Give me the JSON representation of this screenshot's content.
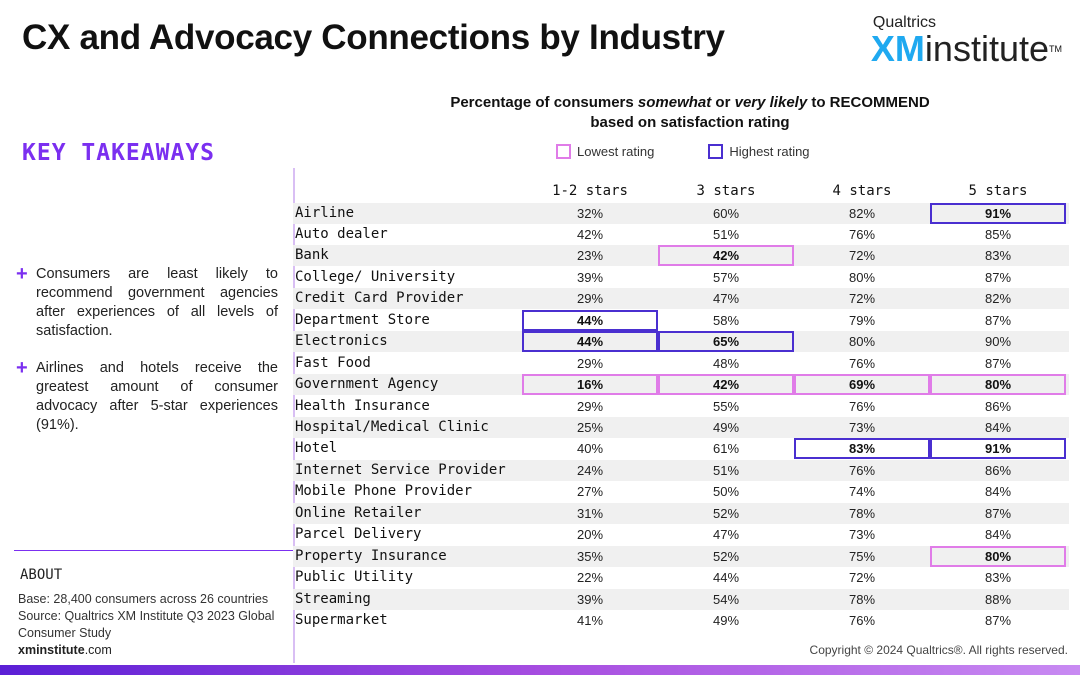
{
  "header": {
    "title": "CX and Advocacy Connections by Industry",
    "logo_top": "Qualtrics",
    "logo_xm": "XM",
    "logo_institute": "institute",
    "logo_tm": "TM"
  },
  "sidebar": {
    "key_takeaways_title": "KEY TAKEAWAYS",
    "takeaways": [
      "Consumers are least likely to recommend government agencies after experiences of all levels of satisfaction.",
      "Airlines and hotels receive the greatest amount of consumer advocacy after 5-star experiences (91%)."
    ],
    "about_title": "ABOUT",
    "about_base": "Base: 28,400 consumers across 26 countries",
    "about_source": "Source: Qualtrics XM Institute Q3 2023 Global Consumer Study",
    "site_bold": "xminstitute",
    "site_rest": ".com"
  },
  "footer": {
    "copyright": "Copyright © 2024 Qualtrics®. All rights reserved."
  },
  "colors": {
    "low": "#e07ce8",
    "high": "#4a2fd0",
    "accent": "#7b2ff0"
  },
  "chart_data": {
    "type": "table",
    "title_part1": "Percentage of consumers ",
    "title_em1": "somewhat",
    "title_part2": " or ",
    "title_em2": "very likely",
    "title_part3": " to RECOMMEND",
    "title_line2": "based on satisfaction rating",
    "legend": {
      "low": "Lowest rating",
      "high": "Highest rating"
    },
    "columns": [
      "1-2 stars",
      "3 stars",
      "4 stars",
      "5 stars"
    ],
    "rows": [
      {
        "label": "Airline",
        "values": [
          "32%",
          "60%",
          "82%",
          "91%"
        ]
      },
      {
        "label": "Auto dealer",
        "values": [
          "42%",
          "51%",
          "76%",
          "85%"
        ]
      },
      {
        "label": "Bank",
        "values": [
          "23%",
          "42%",
          "72%",
          "83%"
        ]
      },
      {
        "label": "College/ University",
        "values": [
          "39%",
          "57%",
          "80%",
          "87%"
        ]
      },
      {
        "label": "Credit Card Provider",
        "values": [
          "29%",
          "47%",
          "72%",
          "82%"
        ]
      },
      {
        "label": "Department Store",
        "values": [
          "44%",
          "58%",
          "79%",
          "87%"
        ]
      },
      {
        "label": "Electronics",
        "values": [
          "44%",
          "65%",
          "80%",
          "90%"
        ]
      },
      {
        "label": "Fast Food",
        "values": [
          "29%",
          "48%",
          "76%",
          "87%"
        ]
      },
      {
        "label": "Government Agency",
        "values": [
          "16%",
          "42%",
          "69%",
          "80%"
        ]
      },
      {
        "label": "Health Insurance",
        "values": [
          "29%",
          "55%",
          "76%",
          "86%"
        ]
      },
      {
        "label": "Hospital/Medical Clinic",
        "values": [
          "25%",
          "49%",
          "73%",
          "84%"
        ]
      },
      {
        "label": "Hotel",
        "values": [
          "40%",
          "61%",
          "83%",
          "91%"
        ]
      },
      {
        "label": "Internet Service Provider",
        "values": [
          "24%",
          "51%",
          "76%",
          "86%"
        ]
      },
      {
        "label": "Mobile Phone Provider",
        "values": [
          "27%",
          "50%",
          "74%",
          "84%"
        ]
      },
      {
        "label": "Online Retailer",
        "values": [
          "31%",
          "52%",
          "78%",
          "87%"
        ]
      },
      {
        "label": "Parcel Delivery",
        "values": [
          "20%",
          "47%",
          "73%",
          "84%"
        ]
      },
      {
        "label": "Property Insurance",
        "values": [
          "35%",
          "52%",
          "75%",
          "80%"
        ]
      },
      {
        "label": "Public Utility",
        "values": [
          "22%",
          "44%",
          "72%",
          "83%"
        ]
      },
      {
        "label": "Streaming",
        "values": [
          "39%",
          "54%",
          "78%",
          "88%"
        ]
      },
      {
        "label": "Supermarket",
        "values": [
          "41%",
          "49%",
          "76%",
          "87%"
        ]
      }
    ],
    "highlights": [
      {
        "row": 0,
        "col": 3,
        "kind": "high"
      },
      {
        "row": 2,
        "col": 1,
        "kind": "low"
      },
      {
        "row": 5,
        "col": 0,
        "kind": "high"
      },
      {
        "row": 6,
        "col": 0,
        "kind": "high"
      },
      {
        "row": 6,
        "col": 1,
        "kind": "high"
      },
      {
        "row": 8,
        "col": 0,
        "kind": "low"
      },
      {
        "row": 8,
        "col": 1,
        "kind": "low"
      },
      {
        "row": 8,
        "col": 2,
        "kind": "low"
      },
      {
        "row": 8,
        "col": 3,
        "kind": "low"
      },
      {
        "row": 11,
        "col": 2,
        "kind": "high"
      },
      {
        "row": 11,
        "col": 3,
        "kind": "high"
      },
      {
        "row": 16,
        "col": 3,
        "kind": "low"
      }
    ]
  }
}
